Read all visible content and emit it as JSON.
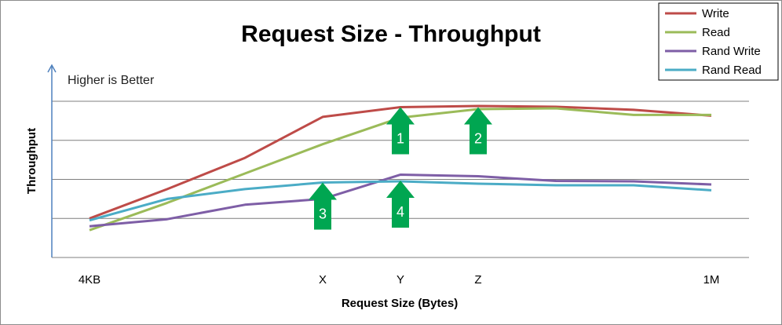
{
  "chart_data": {
    "type": "line",
    "title": "Request Size - Throughput",
    "xlabel": "Request Size (Bytes)",
    "ylabel": "Throughput",
    "annotation": "Higher is Better",
    "x_tick_labels": [
      {
        "x": 0,
        "label": "4KB"
      },
      {
        "x": 3,
        "label": "X"
      },
      {
        "x": 4,
        "label": "Y"
      },
      {
        "x": 5,
        "label": "Z"
      },
      {
        "x": 8,
        "label": "1M"
      }
    ],
    "x_range": [
      0,
      8
    ],
    "y_range": [
      0,
      4
    ],
    "grid": "horizontal",
    "legend_position": "top-right",
    "series": [
      {
        "name": "Write",
        "color": "#be4b48",
        "points": [
          [
            0,
            1.0
          ],
          [
            1,
            1.75
          ],
          [
            2,
            2.55
          ],
          [
            3,
            3.6
          ],
          [
            4,
            3.85
          ],
          [
            5,
            3.88
          ],
          [
            6,
            3.86
          ],
          [
            7,
            3.78
          ],
          [
            8,
            3.63
          ]
        ]
      },
      {
        "name": "Read",
        "color": "#9bbb59",
        "points": [
          [
            0,
            0.7
          ],
          [
            1,
            1.4
          ],
          [
            2,
            2.15
          ],
          [
            3,
            2.9
          ],
          [
            4,
            3.58
          ],
          [
            5,
            3.8
          ],
          [
            6,
            3.82
          ],
          [
            7,
            3.65
          ],
          [
            8,
            3.65
          ]
        ]
      },
      {
        "name": "Rand Write",
        "color": "#7e5ea6",
        "points": [
          [
            0,
            0.8
          ],
          [
            1,
            0.98
          ],
          [
            2,
            1.35
          ],
          [
            3,
            1.5
          ],
          [
            4,
            2.12
          ],
          [
            5,
            2.08
          ],
          [
            6,
            1.96
          ],
          [
            7,
            1.95
          ],
          [
            8,
            1.87
          ]
        ]
      },
      {
        "name": "Rand Read",
        "color": "#4bacc6",
        "points": [
          [
            0,
            0.95
          ],
          [
            1,
            1.5
          ],
          [
            2,
            1.75
          ],
          [
            3,
            1.92
          ],
          [
            4,
            1.95
          ],
          [
            5,
            1.89
          ],
          [
            6,
            1.85
          ],
          [
            7,
            1.85
          ],
          [
            8,
            1.72
          ]
        ]
      }
    ],
    "markers": [
      {
        "label": "1",
        "x": 4.0,
        "y": 3.85,
        "color": "#00a651"
      },
      {
        "label": "2",
        "x": 5.0,
        "y": 3.85,
        "color": "#00a651"
      },
      {
        "label": "3",
        "x": 3.0,
        "y": 1.92,
        "color": "#00a651"
      },
      {
        "label": "4",
        "x": 4.0,
        "y": 1.97,
        "color": "#00a651"
      }
    ],
    "axis_color": "#4f81bd",
    "grid_color": "#7f7f7f"
  }
}
